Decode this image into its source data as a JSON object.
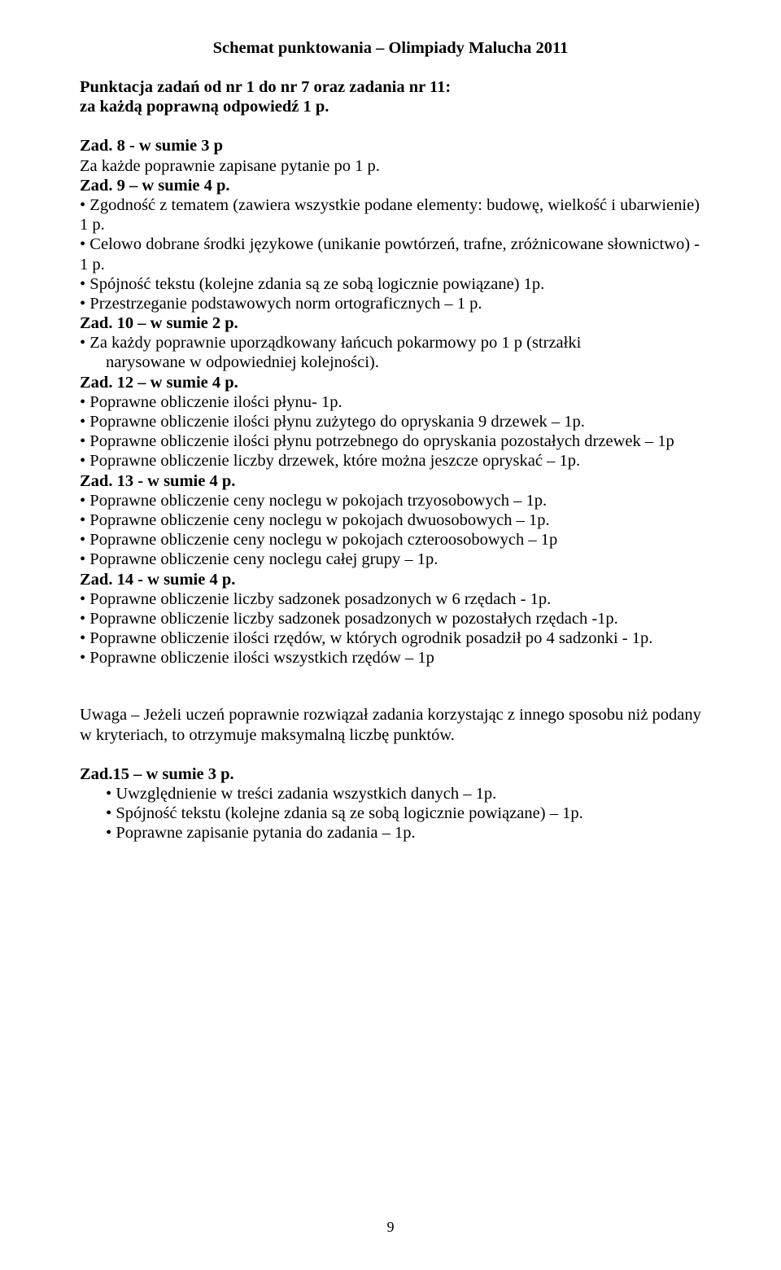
{
  "title": "Schemat punktowania – Olimpiady Malucha 2011",
  "lines": {
    "l1": "Punktacja zadań od nr 1 do nr 7 oraz zadania nr 11:",
    "l2": "za każdą poprawną odpowiedź 1 p.",
    "l3": "Zad. 8 - w sumie 3 p",
    "l4": "Za każde poprawnie zapisane pytanie po 1 p.",
    "l5": "Zad. 9 – w sumie 4 p.",
    "l6": "• Zgodność z tematem (zawiera wszystkie podane elementy: budowę, wielkość  i ubarwienie) 1 p.",
    "l7": "• Celowo dobrane środki językowe (unikanie powtórzeń, trafne, zróżnicowane słownictwo) - 1 p.",
    "l8": "• Spójność tekstu (kolejne zdania są ze sobą logicznie powiązane)  1p.",
    "l9": "• Przestrzeganie podstawowych norm ortograficznych – 1 p.",
    "l10": "Zad. 10 – w sumie 2 p.",
    "l11": "• Za każdy poprawnie uporządkowany łańcuch pokarmowy po 1 p (strzałki",
    "l11b": "narysowane w odpowiedniej kolejności).",
    "l12": "Zad. 12 – w sumie 4 p.",
    "l13": "• Poprawne obliczenie ilości płynu- 1p.",
    "l14": "• Poprawne obliczenie ilości płynu zużytego do opryskania 9 drzewek – 1p.",
    "l15": "• Poprawne obliczenie ilości płynu potrzebnego do opryskania pozostałych drzewek – 1p",
    "l16": "• Poprawne obliczenie liczby drzewek, które można jeszcze opryskać – 1p.",
    "l17": "Zad. 13 - w sumie 4 p.",
    "l18": "• Poprawne obliczenie ceny noclegu w pokojach trzyosobowych – 1p.",
    "l19": "• Poprawne obliczenie ceny noclegu w pokojach dwuosobowych – 1p.",
    "l20": "•  Poprawne obliczenie ceny noclegu w pokojach czteroosobowych  – 1p",
    "l21": "• Poprawne obliczenie ceny noclegu całej grupy – 1p.",
    "l22": "Zad. 14 - w sumie 4 p.",
    "l23": "• Poprawne obliczenie liczby sadzonek posadzonych w 6 rzędach - 1p.",
    "l24": "• Poprawne obliczenie liczby sadzonek posadzonych w pozostałych rzędach -1p.",
    "l25": "• Poprawne obliczenie ilości rzędów, w których ogrodnik posadził po 4 sadzonki  - 1p.",
    "l26": "• Poprawne obliczenie ilości wszystkich rzędów – 1p",
    "l27": "Uwaga – Jeżeli uczeń poprawnie rozwiązał zadania korzystając z innego sposobu niż podany w kryteriach, to otrzymuje maksymalną liczbę punktów.",
    "l28": "Zad.15 – w sumie 3 p.",
    "b1": "Uwzględnienie w treści zadania wszystkich danych – 1p.",
    "b2": "Spójność tekstu (kolejne zdania są ze sobą logicznie powiązane)  – 1p.",
    "b3": "Poprawne zapisanie pytania do zadania – 1p."
  },
  "pageNumber": "9",
  "colors": {
    "text": "#000000",
    "background": "#ffffff"
  },
  "typography": {
    "family": "Times New Roman",
    "body_fontsize_pt": 15,
    "title_weight": "bold"
  }
}
